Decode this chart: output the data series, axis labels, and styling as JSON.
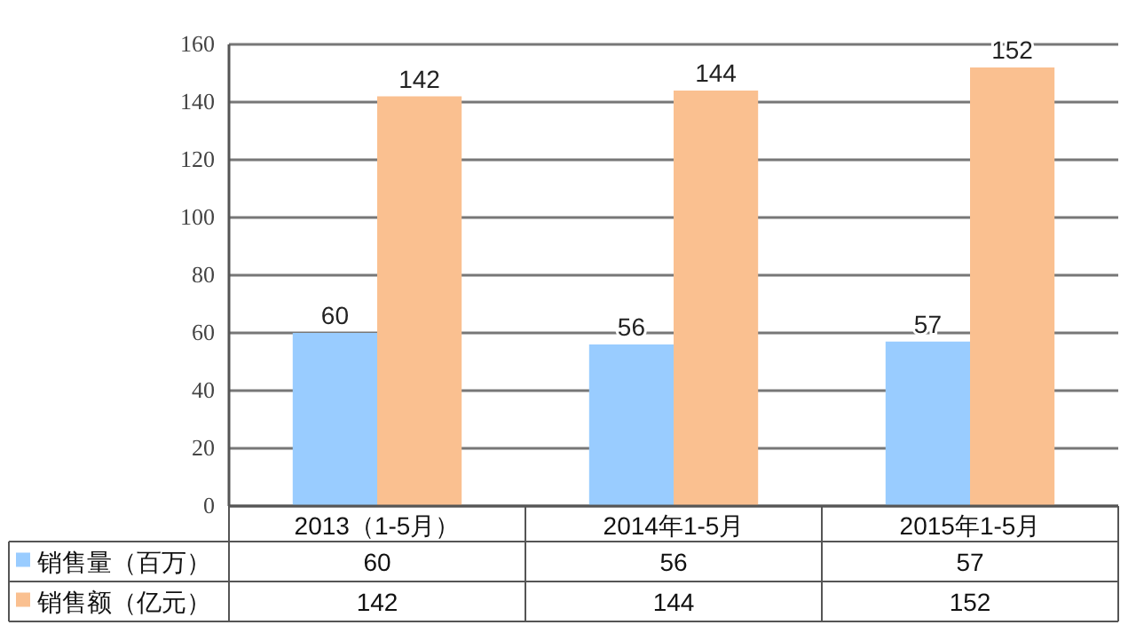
{
  "chart_data": {
    "type": "bar",
    "categories": [
      "2013（1-5月）",
      "2014年1-5月",
      "2015年1-5月"
    ],
    "series": [
      {
        "name": "销售量（百万）",
        "color": "#99ccff",
        "values": [
          60,
          56,
          57
        ],
        "value_labels": [
          "60",
          "56",
          "57"
        ]
      },
      {
        "name": "销售额（亿元）",
        "color": "#fac090",
        "values": [
          142,
          144,
          152
        ],
        "value_labels": [
          "142",
          "144",
          "152"
        ]
      }
    ],
    "ylim": [
      0,
      160
    ],
    "yticks": [
      0,
      20,
      40,
      60,
      80,
      100,
      120,
      140,
      160
    ],
    "grid": "y",
    "annotations": [
      "60",
      "56",
      "57",
      "142",
      "144",
      "152"
    ],
    "legend": "bottom"
  }
}
